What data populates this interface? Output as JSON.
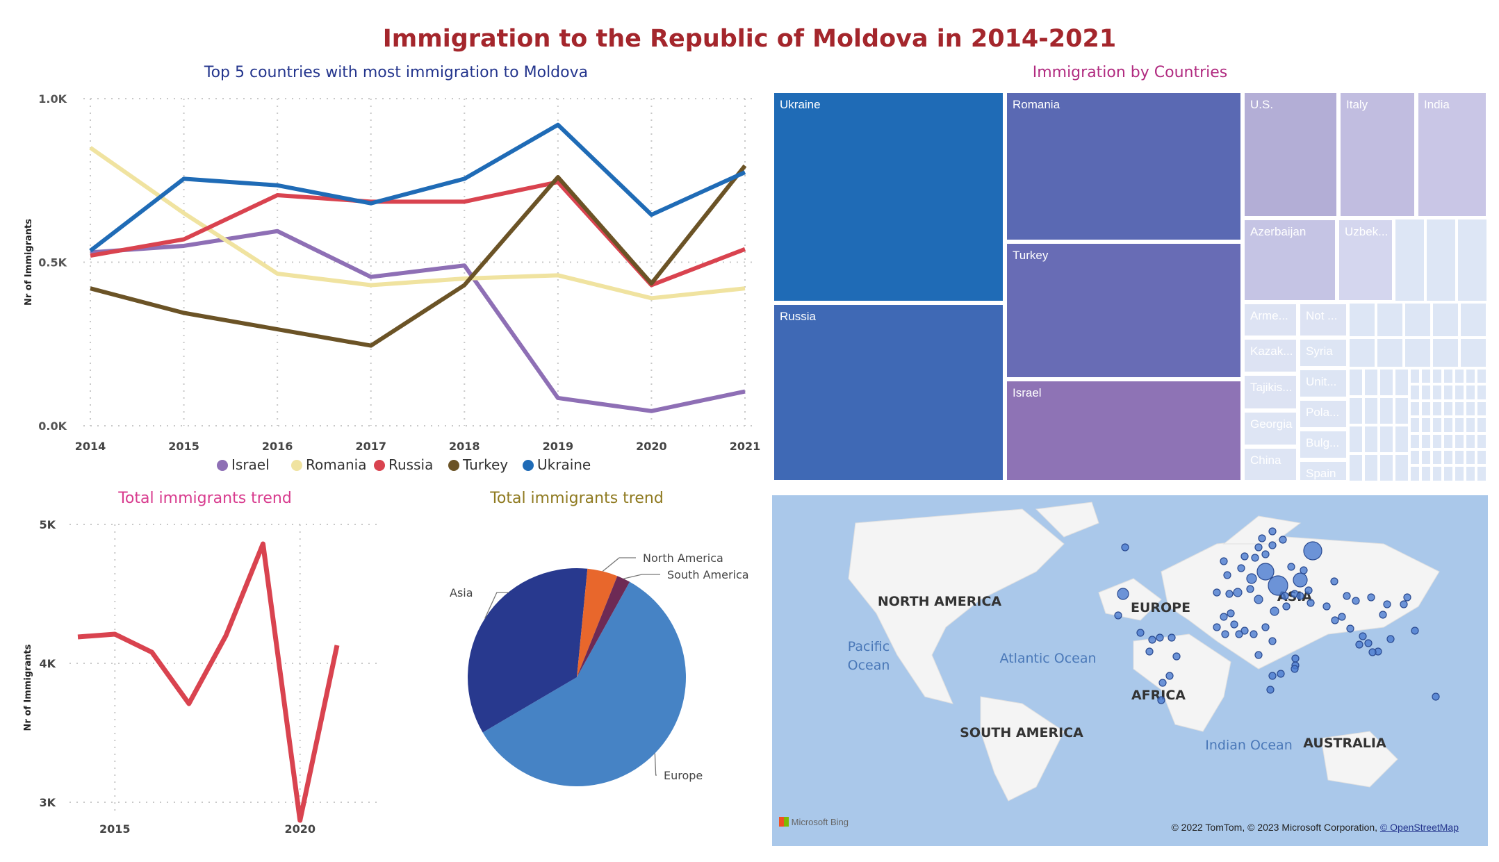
{
  "title": "Immigration to the Republic of Moldova  in 2014-2021",
  "colors": {
    "title": "#a4262c",
    "israel": "#8e6fb5",
    "romania": "#f0e3a0",
    "russia": "#d9434f",
    "turkey": "#6b5326",
    "ukraine": "#1f6bb6",
    "asia": "#28398e",
    "europe": "#4683c5",
    "north_america": "#e8672c",
    "south_america": "#6d2a55",
    "map_water": "#aac8ea",
    "map_land": "#f7f7f7"
  },
  "chart_data": [
    {
      "type": "line",
      "title": "Top 5 countries with most immigration to Moldova",
      "xlabel": "",
      "ylabel": "Nr of Immigrants",
      "x": [
        2014,
        2015,
        2016,
        2017,
        2018,
        2019,
        2020,
        2021
      ],
      "x_tick_labels": [
        "2014",
        "2015",
        "2016",
        "2017",
        "2018",
        "2019",
        "2020",
        "2021"
      ],
      "ylim": [
        0,
        1000
      ],
      "y_ticks": [
        0,
        500,
        1000
      ],
      "y_tick_labels": [
        "0.0K",
        "0.5K",
        "1.0K"
      ],
      "grid": true,
      "legend_position": "bottom",
      "series": [
        {
          "name": "Israel",
          "values": [
            530,
            550,
            595,
            455,
            490,
            85,
            45,
            105
          ]
        },
        {
          "name": "Romania",
          "values": [
            850,
            650,
            465,
            430,
            450,
            460,
            390,
            420
          ]
        },
        {
          "name": "Russia",
          "values": [
            520,
            570,
            705,
            685,
            685,
            745,
            430,
            540
          ]
        },
        {
          "name": "Turkey",
          "values": [
            420,
            345,
            295,
            245,
            430,
            760,
            435,
            795
          ]
        },
        {
          "name": "Ukraine",
          "values": [
            535,
            755,
            735,
            680,
            755,
            920,
            645,
            775
          ]
        }
      ]
    },
    {
      "type": "treemap",
      "title": "Immigration by Countries",
      "categories": [
        "Ukraine",
        "Russia",
        "Romania",
        "Turkey",
        "Israel",
        "U.S.",
        "Italy",
        "India",
        "Azerbaijan",
        "Uzbek...",
        "Arme...",
        "Not ...",
        "Kazak...",
        "Syria",
        "Tajikis...",
        "Unit...",
        "Georgia",
        "Pola...",
        "China",
        "Bulg...",
        "Spain"
      ]
    },
    {
      "type": "line",
      "title": "Total immigrants trend",
      "ylabel": "Nr of Immigrants",
      "x": [
        2014,
        2015,
        2016,
        2017,
        2018,
        2019,
        2020,
        2021
      ],
      "x_tick_labels": [
        "2015",
        "2020"
      ],
      "ylim": [
        2800,
        5000
      ],
      "y_ticks": [
        3000,
        4000,
        5000
      ],
      "y_tick_labels": [
        "3K",
        "4K",
        "5K"
      ],
      "grid": true,
      "series": [
        {
          "values": [
            4190,
            4210,
            4080,
            3710,
            4200,
            4860,
            2870,
            4130
          ]
        }
      ]
    },
    {
      "type": "pie",
      "title": "Total immigrants trend",
      "categories": [
        "Europe",
        "Asia",
        "North America",
        "South America"
      ],
      "values": [
        58.5,
        35.0,
        4.5,
        2.0
      ]
    }
  ],
  "map": {
    "labels": {
      "north_america": "NORTH AMERICA",
      "europe": "EUROPE",
      "asia": "ASIA",
      "africa": "AFRICA",
      "south_america": "SOUTH AMERICA",
      "australia": "AUSTRALIA",
      "pacific": "Pacific Ocean",
      "atlantic": "Atlantic Ocean",
      "indian": "Indian Ocean"
    },
    "bing_label": "Microsoft Bing",
    "attribution": "© 2022 TomTom, © 2023 Microsoft Corporation,",
    "osm_link": "© OpenStreetMap"
  }
}
